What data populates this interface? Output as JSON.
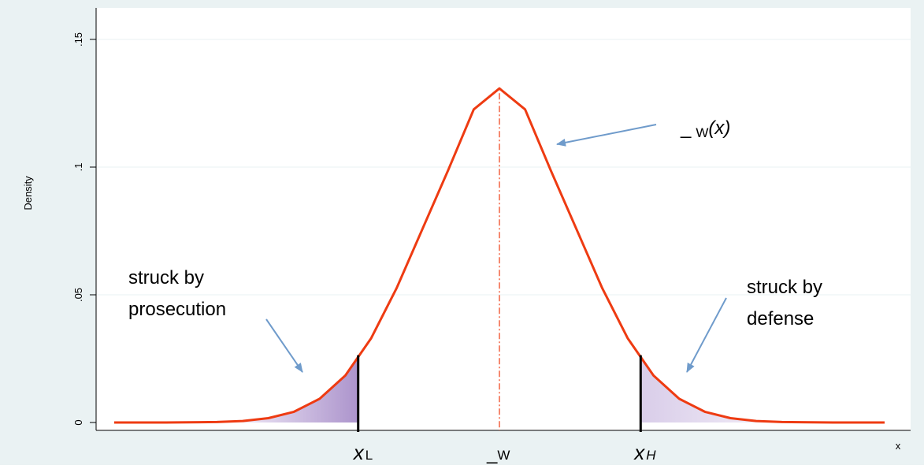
{
  "chart_data": {
    "type": "area",
    "xlabel": "x",
    "ylabel": "Density",
    "ylim": [
      0,
      0.15
    ],
    "yticks": [
      {
        "value": 0,
        "label": "0"
      },
      {
        "value": 0.05,
        "label": ".05"
      },
      {
        "value": 0.1,
        "label": ".1"
      },
      {
        "value": 0.15,
        "label": ".15"
      }
    ],
    "xlim": [
      -15,
      15
    ],
    "grid": true,
    "mean": 0,
    "sd": 3.05,
    "series": [
      {
        "x": [
          -15,
          -13,
          -11,
          -10,
          -9,
          -8,
          -7,
          -6,
          -5,
          -4,
          -3,
          -2,
          -1,
          0,
          1,
          2,
          3,
          4,
          5,
          6,
          7,
          8,
          9,
          10,
          11,
          13,
          15
        ],
        "y": [
          0,
          0,
          0.0002,
          0.0006,
          0.0017,
          0.0042,
          0.0093,
          0.0184,
          0.0329,
          0.0527,
          0.0757,
          0.0987,
          0.1226,
          0.1308,
          0.1226,
          0.0987,
          0.0757,
          0.0527,
          0.0329,
          0.0184,
          0.0093,
          0.0042,
          0.0017,
          0.0006,
          0.0002,
          0,
          0
        ]
      }
    ],
    "markers": {
      "x_low": -5.5,
      "x_high": 5.5
    },
    "tick_labels": {
      "x_low": {
        "main": "x",
        "sub": "L"
      },
      "mean": {
        "main": "_",
        "sub": "W"
      },
      "x_high": {
        "main": "x",
        "sub": "H"
      }
    },
    "annotations": {
      "left_line1": "struck by",
      "left_line2": "prosecution",
      "right_line1": "struck by",
      "right_line2": "defense",
      "curve_prefix": "_",
      "curve_sub": "W",
      "curve_arg": "(x)"
    },
    "colors": {
      "background": "#eaf2f3",
      "plot_bg": "#ffffff",
      "curve": "#ee3b12",
      "shade_left": "#b6a1d2",
      "shade_right": "#dcd2ea",
      "arrow": "#6f9bcb",
      "marker_line": "#000000",
      "gridline": "#eaf2f3"
    }
  }
}
